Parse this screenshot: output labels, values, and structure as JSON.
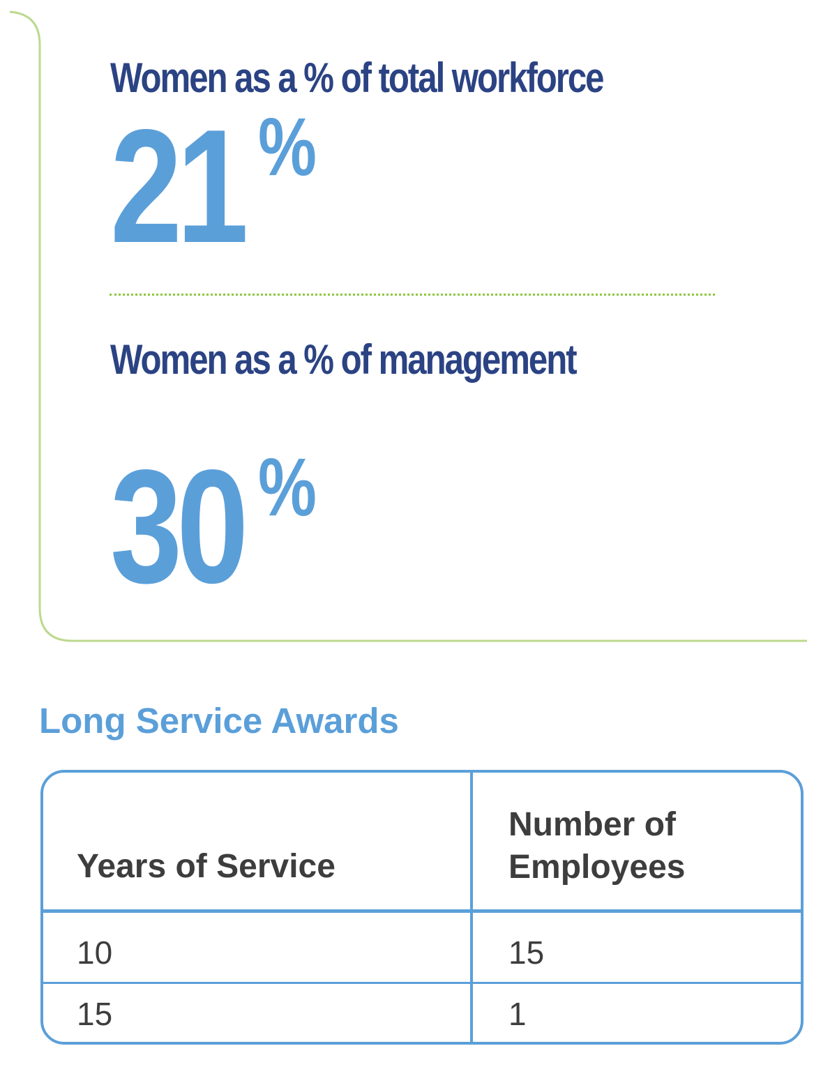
{
  "workforce_stats": {
    "total_workforce_heading": "Women as a % of total workforce",
    "total_workforce_value": "21",
    "total_workforce_unit": "%",
    "management_heading": "Women as a % of management",
    "management_value": "30",
    "management_unit": "%"
  },
  "long_service_awards": {
    "title": "Long Service Awards",
    "columns": [
      "Years of Service",
      "Number of Employees"
    ],
    "rows": [
      [
        "10",
        "15"
      ],
      [
        "15",
        "1"
      ]
    ]
  },
  "colors": {
    "heading_navy": "#2b4383",
    "accent_blue": "#5b9fd9",
    "frame_green": "#bcd98f",
    "divider_green": "#8cc63f",
    "body_text": "#3d3d3d"
  }
}
